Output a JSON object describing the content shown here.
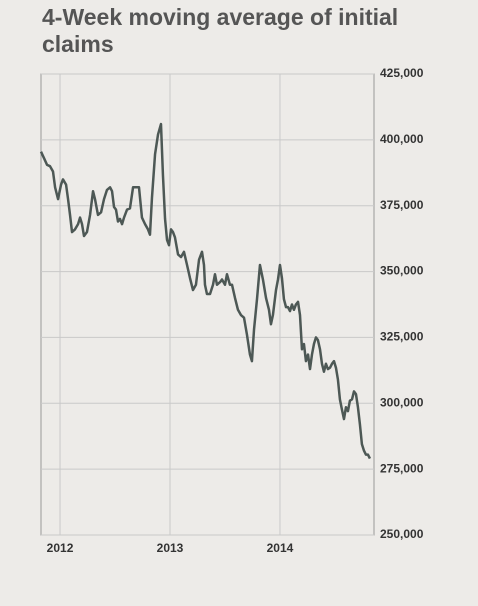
{
  "chart_data": {
    "type": "line",
    "title": "4-Week moving average of initial claims",
    "x": [
      2011.827,
      2011.855,
      2011.882,
      2011.909,
      2011.936,
      2011.955,
      2011.982,
      2012.009,
      2012.027,
      2012.055,
      2012.073,
      2012.091,
      2012.109,
      2012.136,
      2012.164,
      2012.182,
      2012.2,
      2012.218,
      2012.245,
      2012.273,
      2012.3,
      2012.318,
      2012.345,
      2012.373,
      2012.4,
      2012.427,
      2012.455,
      2012.473,
      2012.491,
      2012.509,
      2012.527,
      2012.545,
      2012.564,
      2012.582,
      2012.609,
      2012.636,
      2012.664,
      2012.691,
      2012.718,
      2012.745,
      2012.773,
      2012.8,
      2012.818,
      2012.836,
      2012.864,
      2012.891,
      2012.918,
      2012.936,
      2012.955,
      2012.973,
      2012.991,
      2013.009,
      2013.027,
      2013.045,
      2013.073,
      2013.1,
      2013.127,
      2013.155,
      2013.182,
      2013.209,
      2013.236,
      2013.264,
      2013.291,
      2013.309,
      2013.318,
      2013.336,
      2013.364,
      2013.391,
      2013.409,
      2013.427,
      2013.455,
      2013.473,
      2013.5,
      2013.518,
      2013.545,
      2013.564,
      2013.591,
      2013.618,
      2013.645,
      2013.673,
      2013.7,
      2013.727,
      2013.745,
      2013.764,
      2013.791,
      2013.818,
      2013.845,
      2013.873,
      2013.9,
      2013.918,
      2013.936,
      2013.964,
      2013.982,
      2014.0,
      2014.018,
      2014.036,
      2014.055,
      2014.073,
      2014.091,
      2014.109,
      2014.127,
      2014.145,
      2014.164,
      2014.182,
      2014.2,
      2014.218,
      2014.236,
      2014.255,
      2014.273,
      2014.291,
      2014.309,
      2014.327,
      2014.345,
      2014.364,
      2014.382,
      2014.4,
      2014.418,
      2014.436,
      2014.455,
      2014.473,
      2014.491,
      2014.509,
      2014.527,
      2014.545,
      2014.564,
      2014.582,
      2014.6,
      2014.618,
      2014.636,
      2014.655,
      2014.673,
      2014.691,
      2014.709,
      2014.727,
      2014.745,
      2014.764,
      2014.782,
      2014.8,
      2014.818
    ],
    "values": [
      395500,
      393000,
      390500,
      390000,
      388000,
      382000,
      377500,
      383000,
      385000,
      383000,
      377500,
      371500,
      365000,
      366000,
      368000,
      370500,
      368000,
      363500,
      365000,
      371500,
      380500,
      377500,
      371500,
      372500,
      377500,
      381000,
      382000,
      380500,
      374500,
      373500,
      369000,
      370000,
      368000,
      370500,
      373500,
      374000,
      382000,
      382000,
      382000,
      370500,
      368000,
      366000,
      364000,
      378000,
      394500,
      402000,
      406000,
      386500,
      370000,
      362000,
      360000,
      366000,
      365000,
      363000,
      356500,
      355500,
      357500,
      352500,
      347500,
      343000,
      345000,
      354500,
      357500,
      352500,
      345000,
      341500,
      341500,
      345000,
      349000,
      345000,
      346000,
      347000,
      345000,
      349000,
      345000,
      345000,
      340000,
      335500,
      333500,
      332500,
      326000,
      318500,
      316000,
      328000,
      339500,
      352500,
      347000,
      340000,
      335500,
      330000,
      333500,
      343000,
      347000,
      352500,
      347500,
      339500,
      336500,
      336500,
      335000,
      337500,
      335500,
      337500,
      338500,
      333500,
      320500,
      322500,
      316000,
      318500,
      313000,
      318500,
      322500,
      325000,
      324000,
      320500,
      315000,
      312000,
      315000,
      313000,
      313500,
      315000,
      316000,
      313500,
      309000,
      301500,
      297500,
      294000,
      298500,
      297000,
      301000,
      301500,
      304500,
      303500,
      298500,
      292000,
      284500,
      282000,
      280500,
      280500,
      279000
    ],
    "color": "#4d5855",
    "xlim": [
      2011.827,
      2014.855
    ],
    "xticks": [
      2012,
      2013,
      2014
    ],
    "ylim": [
      250000,
      425000
    ],
    "yticks": [
      {
        "value": 250000,
        "label": "250,000"
      },
      {
        "value": 275000,
        "label": "275,000"
      },
      {
        "value": 300000,
        "label": "300,000"
      },
      {
        "value": 325000,
        "label": "325,000"
      },
      {
        "value": 350000,
        "label": "350,000"
      },
      {
        "value": 375000,
        "label": "375,000"
      },
      {
        "value": 400000,
        "label": "400,000"
      },
      {
        "value": 425000,
        "label": "425,000"
      }
    ],
    "grid": true
  }
}
